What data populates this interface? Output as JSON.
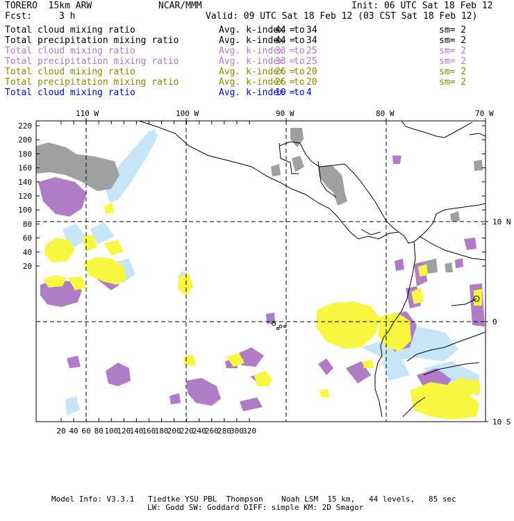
{
  "header": {
    "model": "TORERO  15km ARW",
    "center": "NCAR/MMM",
    "init": "Init: 06 UTC Sat 18 Feb 12",
    "fcst_label": "Fcst:",
    "fcst_value": "3 h",
    "valid": "Valid: 09 UTC Sat 18 Feb 12 (03 CST Sat 18 Feb 12)"
  },
  "legend": [
    {
      "field": "Total cloud mixing ratio",
      "stat": "Avg. k-index =",
      "from": "44",
      "to_word": "to",
      "to": "34",
      "sm": "sm= 2",
      "color": "#000000"
    },
    {
      "field": "Total precipitation mixing ratio",
      "stat": "Avg. k-index =",
      "from": "44",
      "to_word": "to",
      "to": "34",
      "sm": "sm= 2",
      "color": "#000000"
    },
    {
      "field": "Total cloud mixing ratio",
      "stat": "Avg. k-index =",
      "from": "33",
      "to_word": "to",
      "to": "25",
      "sm": "sm= 2",
      "color": "#b07cc6"
    },
    {
      "field": "Total precipitation mixing ratio",
      "stat": "Avg. k-index =",
      "from": "33",
      "to_word": "to",
      "to": "25",
      "sm": "sm= 2",
      "color": "#b07cc6"
    },
    {
      "field": "Total cloud mixing ratio",
      "stat": "Avg. k-index =",
      "from": "26",
      "to_word": "to",
      "to": "20",
      "sm": "sm= 2",
      "color": "#8a8a00"
    },
    {
      "field": "Total precipitation mixing ratio",
      "stat": "Avg. k-index =",
      "from": "26",
      "to_word": "to",
      "to": "20",
      "sm": "sm= 2",
      "color": "#8a8a00"
    },
    {
      "field": "Total cloud mixing ratio",
      "stat": "Avg. k-index =",
      "from": "19",
      "to_word": "to",
      "to": "4",
      "sm": "",
      "color": "#0000cc"
    }
  ],
  "map": {
    "top_lon_labels": [
      "110 W",
      "100 W",
      "90 W",
      "80 W",
      "70 W"
    ],
    "right_lat_labels": [
      "10 N",
      "0",
      "10 S"
    ],
    "y_ticks": [
      "220",
      "200",
      "180",
      "160",
      "140",
      "120",
      "100",
      "80",
      "60",
      "40",
      "20"
    ],
    "x_ticks": [
      "20",
      "40",
      "60",
      "80",
      "100",
      "120",
      "140",
      "160",
      "180",
      "200",
      "220",
      "240",
      "260",
      "280",
      "300",
      "320"
    ],
    "colors": {
      "gray": "#a0a0a0",
      "purple": "#b07cc6",
      "yellow": "#f7f742",
      "lightblue": "#c6e6f8",
      "coast": "#000000"
    }
  },
  "footer": {
    "line1": "Model Info: V3.3.1   Tiedtke YSU PBL  Thompson    Noah LSM  15 km,   44 levels,   85 sec",
    "line2": "LW: Godd SW: Goddard DIFF: simple KM: 2D Smagor"
  }
}
